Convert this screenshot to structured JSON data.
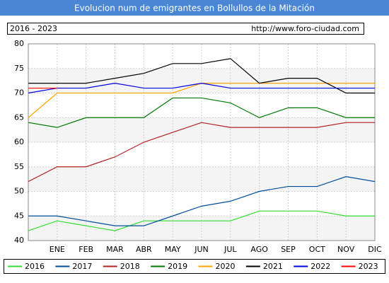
{
  "chart_data": {
    "type": "line",
    "title": "Evolucion num de emigrantes en Bollullos de la Mitación",
    "subtitle": "2016 - 2023",
    "source": "http://www.foro-ciudad.com",
    "categories": [
      null,
      "ENE",
      "FEB",
      "MAR",
      "ABR",
      "MAY",
      "JUN",
      "JUL",
      "AGO",
      "SEP",
      "OCT",
      "NOV",
      "DIC"
    ],
    "ylim": [
      40,
      80
    ],
    "yticks": [
      40,
      45,
      50,
      55,
      60,
      65,
      70,
      75,
      80
    ],
    "grid": true,
    "legend": "bottom",
    "series": [
      {
        "name": "2016",
        "color": "#33dd33",
        "values": [
          42,
          44,
          43,
          42,
          44,
          44,
          44,
          44,
          46,
          46,
          46,
          45,
          45
        ]
      },
      {
        "name": "2017",
        "color": "#004d99",
        "values": [
          45,
          45,
          44,
          43,
          43,
          45,
          47,
          48,
          50,
          51,
          51,
          53,
          52
        ]
      },
      {
        "name": "2018",
        "color": "#b22222",
        "values": [
          52,
          55,
          55,
          57,
          60,
          62,
          64,
          63,
          63,
          63,
          63,
          64,
          64
        ]
      },
      {
        "name": "2019",
        "color": "#007700",
        "values": [
          64,
          63,
          65,
          65,
          65,
          69,
          69,
          68,
          65,
          67,
          67,
          65,
          65
        ]
      },
      {
        "name": "2020",
        "color": "#ffa500",
        "values": [
          65,
          70,
          70,
          70,
          70,
          70,
          72,
          72,
          72,
          72,
          72,
          72,
          72
        ]
      },
      {
        "name": "2021",
        "color": "#000000",
        "values": [
          72,
          72,
          72,
          73,
          74,
          76,
          76,
          77,
          72,
          73,
          73,
          70,
          70
        ]
      },
      {
        "name": "2022",
        "color": "#0000dd",
        "values": [
          70,
          71,
          71,
          72,
          71,
          71,
          72,
          71,
          71,
          71,
          71,
          71,
          71
        ]
      },
      {
        "name": "2023",
        "color": "#ff0000",
        "values": [
          71,
          71,
          null,
          null,
          null,
          null,
          null,
          null,
          null,
          null,
          null,
          null,
          null
        ]
      }
    ]
  }
}
